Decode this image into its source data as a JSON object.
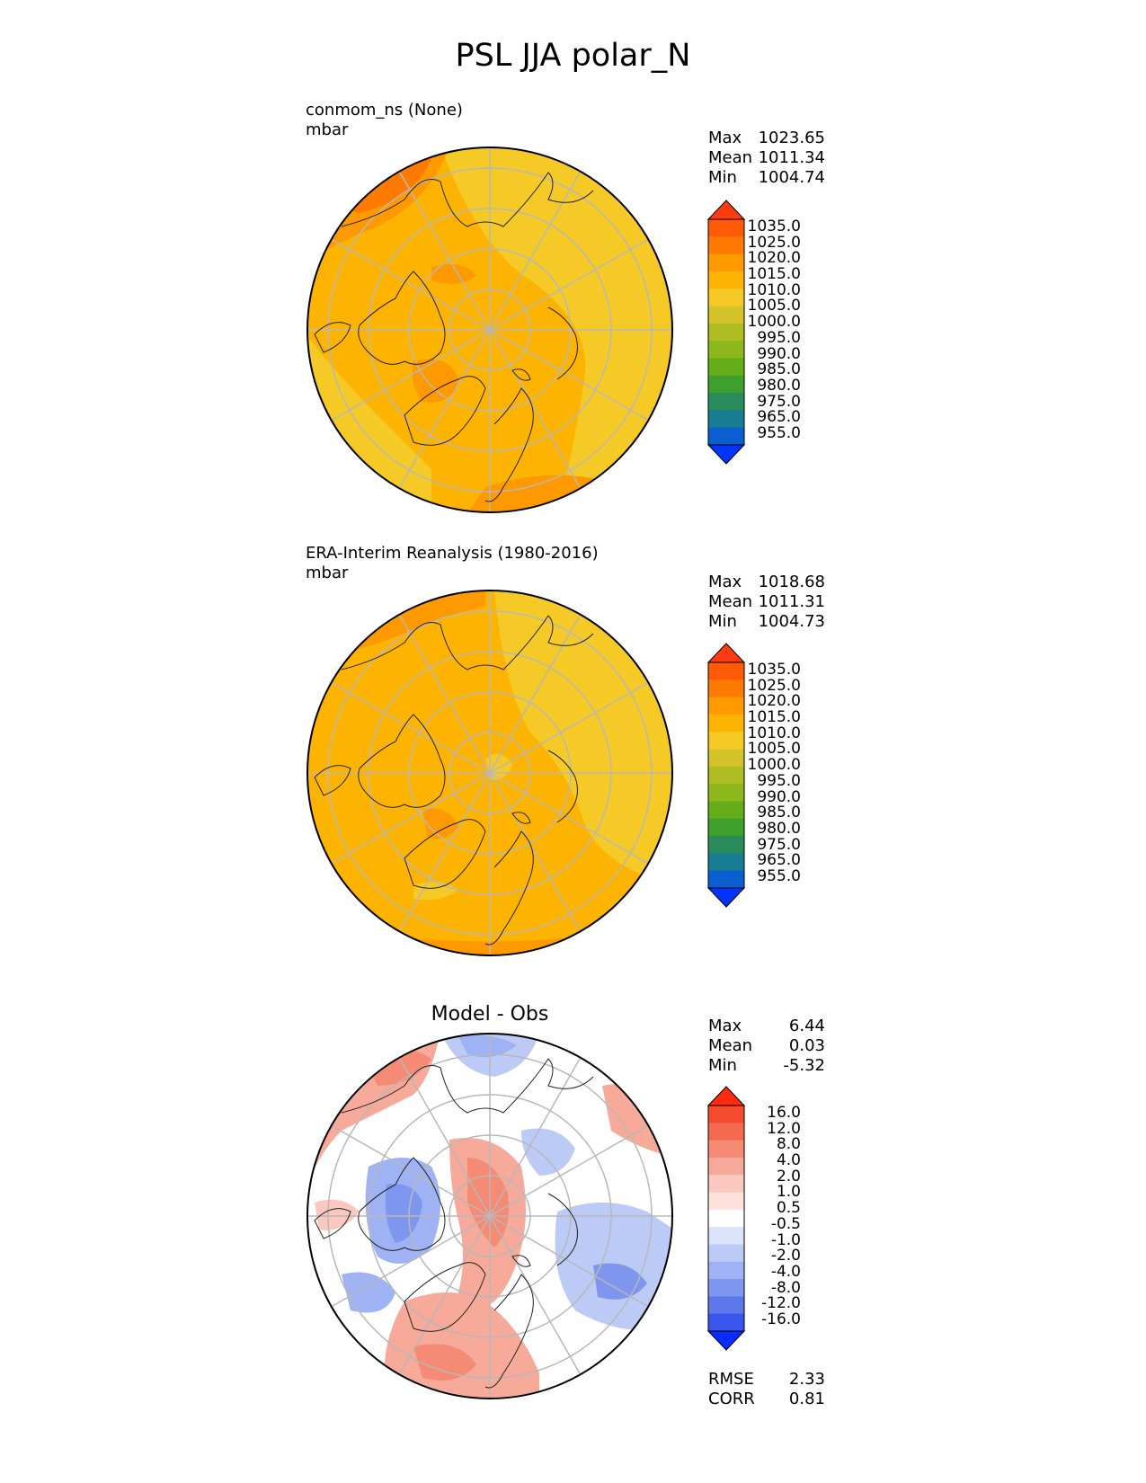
{
  "figure": {
    "title": "PSL JJA polar_N"
  },
  "chart_data": [
    {
      "type": "heatmap",
      "projection": "north polar stereographic",
      "title": "conmom_ns (None)",
      "units": "mbar",
      "stats": {
        "max_label": "Max",
        "max": "1023.65",
        "mean_label": "Mean",
        "mean": "1011.34",
        "min_label": "Min",
        "min": "1004.74"
      },
      "colorbar": {
        "levels": [
          "1035.0",
          "1025.0",
          "1020.0",
          "1015.0",
          "1010.0",
          "1005.0",
          "1000.0",
          "995.0",
          "990.0",
          "985.0",
          "980.0",
          "975.0",
          "965.0",
          "955.0"
        ],
        "colors": [
          "#ff3b0f",
          "#ff5a08",
          "#ff7a00",
          "#fe9a00",
          "#fdb400",
          "#f5c926",
          "#d4c32b",
          "#aebd22",
          "#8db81c",
          "#66ae19",
          "#3f9f2c",
          "#2a8c5c",
          "#167d92",
          "#0a5ecf",
          "#0033ff"
        ]
      }
    },
    {
      "type": "heatmap",
      "projection": "north polar stereographic",
      "title": "ERA-Interim Reanalysis (1980-2016)",
      "units": "mbar",
      "stats": {
        "max_label": "Max",
        "max": "1018.68",
        "mean_label": "Mean",
        "mean": "1011.31",
        "min_label": "Min",
        "min": "1004.73"
      },
      "colorbar": {
        "levels": [
          "1035.0",
          "1025.0",
          "1020.0",
          "1015.0",
          "1010.0",
          "1005.0",
          "1000.0",
          "995.0",
          "990.0",
          "985.0",
          "980.0",
          "975.0",
          "965.0",
          "955.0"
        ],
        "colors": [
          "#ff3b0f",
          "#ff5a08",
          "#ff7a00",
          "#fe9a00",
          "#fdb400",
          "#f5c926",
          "#d4c32b",
          "#aebd22",
          "#8db81c",
          "#66ae19",
          "#3f9f2c",
          "#2a8c5c",
          "#167d92",
          "#0a5ecf",
          "#0033ff"
        ]
      }
    },
    {
      "type": "heatmap",
      "projection": "north polar stereographic",
      "title": "Model - Obs",
      "units": "",
      "stats": {
        "max_label": "Max",
        "max": "6.44",
        "mean_label": "Mean",
        "mean": "0.03",
        "min_label": "Min",
        "min": "-5.32"
      },
      "metrics": {
        "rmse_label": "RMSE",
        "rmse": "2.33",
        "corr_label": "CORR",
        "corr": "0.81"
      },
      "colorbar": {
        "levels": [
          "16.0",
          "12.0",
          "8.0",
          "4.0",
          "2.0",
          "1.0",
          "0.5",
          "-0.5",
          "-1.0",
          "-2.0",
          "-4.0",
          "-8.0",
          "-12.0",
          "-16.0"
        ],
        "colors": [
          "#ff2a10",
          "#f54a2e",
          "#f46a50",
          "#f58a75",
          "#f7a99a",
          "#fac8be",
          "#fde2dc",
          "#ffffff",
          "#dbe3fa",
          "#bccbf6",
          "#9fb2f3",
          "#7f96ef",
          "#5e78ec",
          "#3a55ed",
          "#0a2dff"
        ]
      }
    }
  ]
}
